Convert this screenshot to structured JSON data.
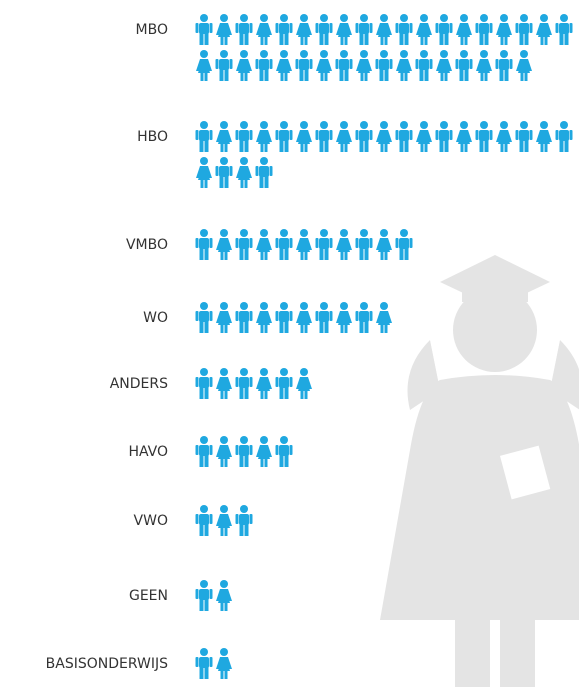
{
  "chart_data": {
    "type": "pictogram",
    "color": "#1fa8e0",
    "categories": [
      "MBO",
      "HBO",
      "VMBO",
      "WO",
      "ANDERS",
      "HAVO",
      "VWO",
      "GEEN",
      "BASISONDERWIJS"
    ],
    "values": [
      36,
      23,
      11,
      10,
      6,
      5,
      3,
      2,
      2
    ]
  }
}
